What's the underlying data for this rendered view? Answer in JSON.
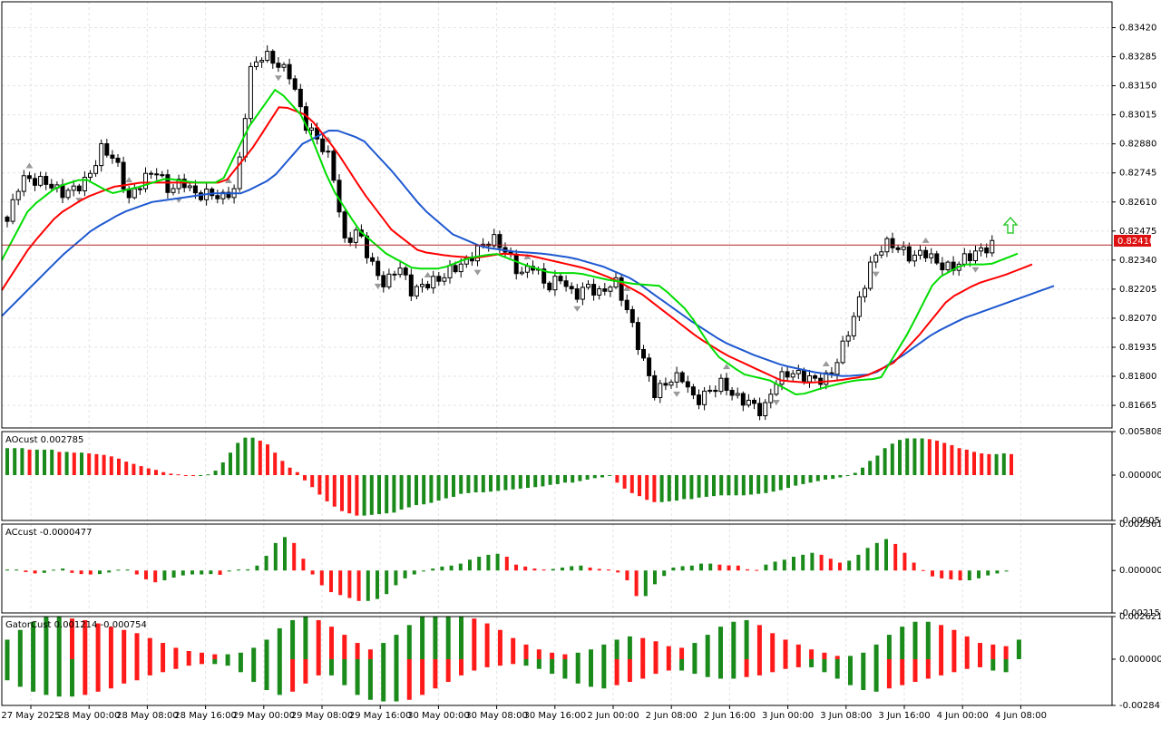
{
  "colors": {
    "background": "#ffffff",
    "grid": "#e3e3e3",
    "frame": "#000000",
    "candle": "#000000",
    "jaw": "#1e58d0",
    "teeth": "#ff0000",
    "lips": "#00dd00",
    "price_line": "#b22222",
    "price_tag": "#dd1111",
    "bar_up": "#1a8a1a",
    "bar_down": "#ff1a1a",
    "fractal": "#9a9a9a",
    "signal_arrow": "#33cc33"
  },
  "price_label": "0.82410",
  "chart_data": [
    {
      "type": "candlestick",
      "name": "main-price",
      "ylim": [
        0.8156,
        0.8354
      ],
      "ticks": [
        "0.83420",
        "0.83285",
        "0.83150",
        "0.83015",
        "0.82880",
        "0.82745",
        "0.82610",
        "0.82475",
        "0.82340",
        "0.82205",
        "0.82070",
        "0.81935",
        "0.81800",
        "0.81665"
      ],
      "current_price": 0.8241,
      "close_path": [
        0.8252,
        0.8272,
        0.8271,
        0.827,
        0.8265,
        0.8267,
        0.8272,
        0.8286,
        0.8281,
        0.8262,
        0.8271,
        0.8276,
        0.8266,
        0.8271,
        0.8264,
        0.8265,
        0.8263,
        0.8268,
        0.8322,
        0.833,
        0.8325,
        0.832,
        0.8298,
        0.829,
        0.828,
        0.8242,
        0.8248,
        0.8232,
        0.8222,
        0.8232,
        0.8219,
        0.8223,
        0.8225,
        0.823,
        0.8233,
        0.824,
        0.8244,
        0.8238,
        0.8227,
        0.8232,
        0.8221,
        0.8226,
        0.8217,
        0.8222,
        0.8218,
        0.8225,
        0.821,
        0.819,
        0.8172,
        0.8178,
        0.818,
        0.8168,
        0.8173,
        0.8177,
        0.817,
        0.8168,
        0.8163,
        0.8178,
        0.8182,
        0.818,
        0.8178,
        0.818,
        0.8195,
        0.8212,
        0.8232,
        0.8242,
        0.824,
        0.8235,
        0.8238,
        0.8232,
        0.823,
        0.8235,
        0.8238,
        0.8241
      ],
      "lips_path": [
        0.8234,
        0.8258,
        0.8268,
        0.8272,
        0.8265,
        0.8268,
        0.8272,
        0.827,
        0.827,
        0.8296,
        0.8314,
        0.83,
        0.8268,
        0.8248,
        0.8237,
        0.823,
        0.823,
        0.8235,
        0.8237,
        0.8232,
        0.8228,
        0.8228,
        0.8225,
        0.8223,
        0.8222,
        0.821,
        0.819,
        0.8181,
        0.8178,
        0.8171,
        0.8175,
        0.8178,
        0.8179,
        0.82,
        0.8225,
        0.8232,
        0.8232,
        0.8237
      ],
      "teeth_path": [
        0.822,
        0.824,
        0.8255,
        0.8263,
        0.8268,
        0.827,
        0.827,
        0.827,
        0.827,
        0.8286,
        0.8306,
        0.8301,
        0.8285,
        0.8265,
        0.8248,
        0.8238,
        0.8236,
        0.8235,
        0.8237,
        0.8236,
        0.8233,
        0.823,
        0.8225,
        0.8218,
        0.8208,
        0.8198,
        0.819,
        0.8184,
        0.8178,
        0.8177,
        0.8178,
        0.818,
        0.8186,
        0.82,
        0.8216,
        0.8223,
        0.8227,
        0.8232
      ],
      "jaw_path": [
        0.8208,
        0.8222,
        0.8236,
        0.8248,
        0.8256,
        0.8261,
        0.8263,
        0.8265,
        0.8265,
        0.8272,
        0.8288,
        0.8295,
        0.829,
        0.8275,
        0.8258,
        0.8246,
        0.824,
        0.8238,
        0.8237,
        0.8235,
        0.8231,
        0.8225,
        0.8215,
        0.8205,
        0.8196,
        0.819,
        0.8185,
        0.8182,
        0.818,
        0.8181,
        0.819,
        0.82,
        0.8207,
        0.8212,
        0.8217,
        0.8222
      ]
    },
    {
      "type": "histogram",
      "name": "AOcust",
      "label": "AOcust 0.002785",
      "ylim": [
        -0.00605,
        0.005808
      ],
      "ticks": [
        "0.005808",
        "0.000000",
        "-0.006050"
      ],
      "values": [
        0.0036,
        0.0036,
        0.0036,
        0.0034,
        0.0034,
        0.0034,
        0.0034,
        0.0031,
        0.0031,
        0.003,
        0.003,
        0.0029,
        0.0028,
        0.0027,
        0.0025,
        0.0022,
        0.0018,
        0.0015,
        0.0012,
        0.0009,
        0.0007,
        0.0004,
        0.0002,
        0.0001,
        0.0,
        -0.0001,
        0.0,
        0.0001,
        0.0006,
        0.0017,
        0.003,
        0.0043,
        0.005,
        0.005,
        0.0046,
        0.0041,
        0.003,
        0.0019,
        0.001,
        0.0004,
        -0.0007,
        -0.0016,
        -0.0026,
        -0.0035,
        -0.0042,
        -0.0048,
        -0.0051,
        -0.0054,
        -0.0054,
        -0.0053,
        -0.0052,
        -0.0051,
        -0.005,
        -0.0046,
        -0.0043,
        -0.004,
        -0.0039,
        -0.0037,
        -0.0034,
        -0.0031,
        -0.0029,
        -0.0025,
        -0.0024,
        -0.0023,
        -0.0023,
        -0.0022,
        -0.0021,
        -0.002,
        -0.0019,
        -0.0018,
        -0.0017,
        -0.0016,
        -0.0015,
        -0.0013,
        -0.0012,
        -0.001,
        -0.001,
        -0.0008,
        -0.0006,
        -0.0004,
        -0.0003,
        -0.0001,
        -0.001,
        -0.0018,
        -0.0024,
        -0.0028,
        -0.0033,
        -0.0036,
        -0.0036,
        -0.0035,
        -0.0034,
        -0.0032,
        -0.0032,
        -0.003,
        -0.0029,
        -0.0028,
        -0.0027,
        -0.0027,
        -0.0027,
        -0.0027,
        -0.0026,
        -0.0025,
        -0.0024,
        -0.0022,
        -0.002,
        -0.0017,
        -0.0014,
        -0.0012,
        -0.001,
        -0.0008,
        -0.0006,
        -0.0005,
        -0.0003,
        -0.0001,
        0.0003,
        0.001,
        0.0019,
        0.0026,
        0.0036,
        0.0042,
        0.0047,
        0.0049,
        0.0049,
        0.0049,
        0.0048,
        0.0046,
        0.0043,
        0.004,
        0.0036,
        0.0034,
        0.0031,
        0.0029,
        0.0028,
        0.0028,
        0.0029,
        0.0028
      ]
    },
    {
      "type": "histogram",
      "name": "ACcust",
      "label": "ACcust -0.0000477",
      "ylim": [
        -0.0021594,
        0.0023619
      ],
      "ticks": [
        "0.0023619",
        "0.0000000",
        "-0.0021594"
      ],
      "values": [
        5e-05,
        5e-05,
        -8e-05,
        -0.00015,
        -0.00012,
        4e-05,
        0.0001,
        -0.00012,
        -0.00018,
        -0.0002,
        -0.00018,
        -0.0001,
        4e-05,
        5e-05,
        -0.0002,
        -0.00045,
        -0.0006,
        -0.0005,
        -0.00036,
        -0.00025,
        -0.0002,
        -0.0002,
        -0.00018,
        -0.00022,
        -5e-05,
        5e-05,
        6e-05,
        0.00025,
        0.00075,
        0.0014,
        0.0017,
        0.0014,
        0.0006,
        -0.0002,
        -0.00075,
        -0.0011,
        -0.00125,
        -0.0014,
        -0.00155,
        -0.00155,
        -0.00145,
        -0.0012,
        -0.00075,
        -0.0004,
        -0.0002,
        -5e-05,
        0.0001,
        0.0002,
        0.00025,
        0.00035,
        0.00055,
        0.0007,
        0.0008,
        0.00085,
        0.0007,
        0.0003,
        0.0002,
        0.0001,
        5e-05,
        8e-05,
        0.00015,
        0.00022,
        0.00025,
        0.00015,
        8e-05,
        5e-05,
        -0.0001,
        -0.0005,
        -0.0013,
        -0.0013,
        -0.0007,
        -0.00028,
        0.00015,
        0.00022,
        0.00025,
        0.00035,
        0.00035,
        0.0003,
        0.00026,
        0.00025,
        6e-05,
        3e-05,
        0.0003,
        0.00045,
        0.00055,
        0.0007,
        0.0008,
        0.0009,
        0.0008,
        0.0006,
        0.0004,
        0.0005,
        0.0008,
        0.00115,
        0.0014,
        0.0016,
        0.00135,
        0.0009,
        0.0004,
        2e-05,
        -0.0003,
        -0.0004,
        -0.00045,
        -0.0005,
        -0.0005,
        -0.0004,
        -0.00025,
        -0.00015,
        -5e-05
      ]
    },
    {
      "type": "histogram",
      "name": "GatorCust",
      "label": "GatorCust 0.001214 -0.000754",
      "ylim": [
        -0.002847,
        0.002621
      ],
      "ticks": [
        "0.002621",
        "0.000000",
        "-0.002847"
      ],
      "upper_values": [
        0.0012,
        0.0018,
        0.0023,
        0.0026,
        0.0026,
        0.0025,
        0.0024,
        0.0022,
        0.002,
        0.0018,
        0.0016,
        0.0013,
        0.001,
        0.0007,
        0.0005,
        0.0004,
        0.0003,
        0.0003,
        0.0004,
        0.0007,
        0.0012,
        0.0019,
        0.0024,
        0.0026,
        0.0024,
        0.002,
        0.0015,
        0.001,
        0.0006,
        0.001,
        0.0015,
        0.0021,
        0.0026,
        0.0026,
        0.0026,
        0.0026,
        0.0025,
        0.0022,
        0.0018,
        0.0013,
        0.0009,
        0.0006,
        0.0004,
        0.0003,
        0.0004,
        0.0006,
        0.0009,
        0.0012,
        0.0014,
        0.0013,
        0.0011,
        0.0008,
        0.0007,
        0.001,
        0.0015,
        0.002,
        0.0023,
        0.0024,
        0.0021,
        0.0016,
        0.0012,
        0.0009,
        0.0006,
        0.0004,
        0.0002,
        0.0002,
        0.0004,
        0.0009,
        0.0015,
        0.002,
        0.0023,
        0.0023,
        0.0021,
        0.0018,
        0.0014,
        0.001,
        0.0009,
        0.0008,
        0.0012
      ],
      "lower_values": [
        -0.0013,
        -0.0017,
        -0.002,
        -0.0022,
        -0.0023,
        -0.0023,
        -0.0022,
        -0.002,
        -0.0018,
        -0.0015,
        -0.0013,
        -0.001,
        -0.0008,
        -0.0006,
        -0.0004,
        -0.0003,
        -0.0003,
        -0.0004,
        -0.0008,
        -0.0014,
        -0.0019,
        -0.0022,
        -0.002,
        -0.0015,
        -0.001,
        -0.001,
        -0.0016,
        -0.0022,
        -0.0025,
        -0.0026,
        -0.0026,
        -0.0025,
        -0.0022,
        -0.0018,
        -0.0014,
        -0.001,
        -0.0007,
        -0.0005,
        -0.0004,
        -0.0003,
        -0.0004,
        -0.0006,
        -0.0009,
        -0.0012,
        -0.0015,
        -0.0017,
        -0.0018,
        -0.0016,
        -0.0014,
        -0.0012,
        -0.0009,
        -0.0007,
        -0.0007,
        -0.0009,
        -0.0011,
        -0.0012,
        -0.0012,
        -0.0011,
        -0.001,
        -0.0008,
        -0.0006,
        -0.0005,
        -0.0005,
        -0.0008,
        -0.0012,
        -0.0016,
        -0.0019,
        -0.002,
        -0.0018,
        -0.0016,
        -0.0014,
        -0.0012,
        -0.001,
        -0.0008,
        -0.0006,
        -0.0005,
        -0.0007,
        -0.0008
      ]
    }
  ],
  "x_axis_labels": [
    "27 May 2025",
    "28 May 00:00",
    "28 May 08:00",
    "28 May 16:00",
    "29 May 00:00",
    "29 May 08:00",
    "29 May 16:00",
    "30 May 00:00",
    "30 May 08:00",
    "30 May 16:00",
    "2 Jun 00:00",
    "2 Jun 08:00",
    "2 Jun 16:00",
    "3 Jun 00:00",
    "3 Jun 08:00",
    "3 Jun 16:00",
    "4 Jun 00:00",
    "4 Jun 08:00"
  ]
}
